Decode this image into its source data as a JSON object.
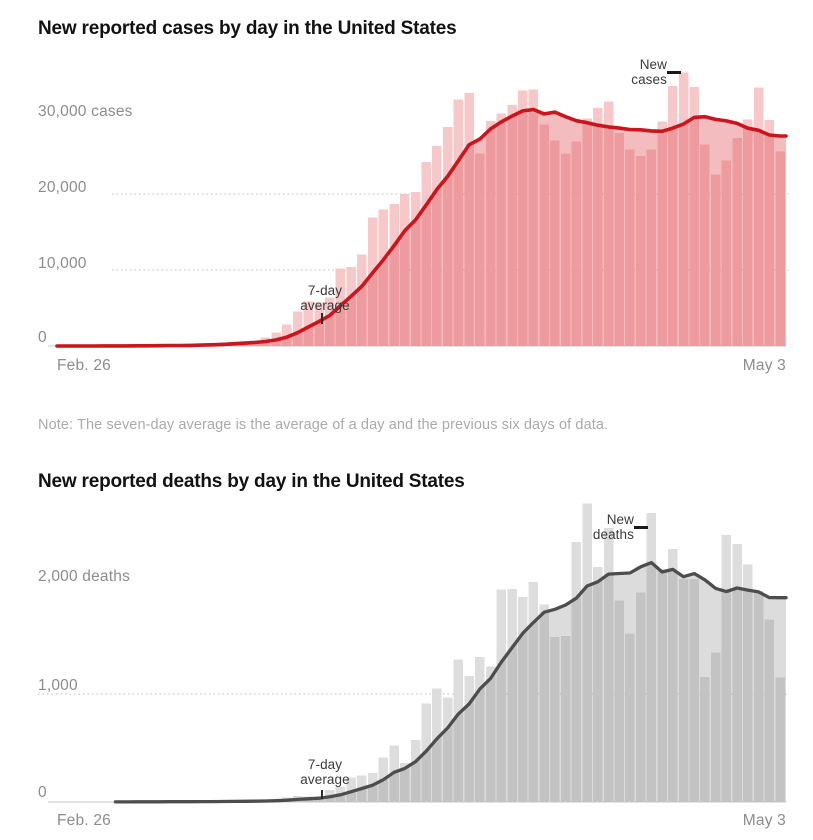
{
  "note": "Note: The seven-day average is the average of a day and the previous six days of data.",
  "charts": [
    {
      "title": "New reported cases by day in the United States",
      "series_annotation": "New cases",
      "avg_annotation": "7-day average",
      "x_start_label": "Feb. 26",
      "x_end_label": "May 3",
      "y_labels": [
        "30,000 cases",
        "20,000",
        "10,000",
        "0"
      ],
      "colors": {
        "bar": "#f6c8ca",
        "area": "rgba(226,88,92,0.4)",
        "line": "#cb141c",
        "grid": "#cccccc",
        "zero_line": "#dadada"
      }
    },
    {
      "title": "New reported deaths by day in the United States",
      "series_annotation": "New deaths",
      "avg_annotation": "7-day average",
      "x_start_label": "Feb. 26",
      "x_end_label": "May 3",
      "y_labels": [
        "2,000 deaths",
        "1,000",
        "0"
      ],
      "colors": {
        "bar": "#dddddd",
        "area": "rgba(130,130,130,0.28)",
        "line": "#4d4d4d",
        "grid": "#cccccc",
        "zero_line": "#dadada"
      }
    }
  ],
  "chart_data": [
    {
      "type": "bar",
      "title": "New reported cases by day in the United States",
      "unit": "cases",
      "x_axis": {
        "start": "Feb. 26",
        "end": "May 3",
        "n_days": 68
      },
      "y_ticks": [
        0,
        10000,
        20000,
        30000
      ],
      "ylim": [
        0,
        36500
      ],
      "grid": "dotted horizontal gridlines at 10,000 and 20,000; solid zero baseline",
      "legend_position": "in-chart annotations (New cases -> tallest bar, 7-day average -> line)",
      "overlay": {
        "type": "line",
        "name": "7-day average",
        "derivation": "average of a day and the previous six days"
      },
      "values": [
        0,
        1,
        1,
        7,
        24,
        20,
        31,
        68,
        45,
        119,
        114,
        64,
        148,
        291,
        329,
        444,
        599,
        669,
        727,
        1114,
        1747,
        2853,
        4562,
        5836,
        5698,
        6363,
        10189,
        10377,
        12016,
        16894,
        17965,
        18695,
        19979,
        20255,
        24242,
        26341,
        28819,
        32425,
        33264,
        25316,
        29595,
        30613,
        31709,
        33606,
        33752,
        29145,
        27057,
        25306,
        26930,
        29916,
        31285,
        32165,
        28001,
        25841,
        25023,
        25858,
        29568,
        34196,
        36007,
        34072,
        26509,
        22541,
        24393,
        27353,
        29771,
        34032,
        29744,
        25621
      ]
    },
    {
      "type": "bar",
      "title": "New reported deaths by day in the United States",
      "unit": "deaths",
      "x_axis": {
        "start": "Feb. 26",
        "end": "May 3",
        "n_days": 68
      },
      "y_ticks": [
        0,
        1000,
        2000
      ],
      "ylim": [
        0,
        2800
      ],
      "grid": "dotted horizontal gridline at 1,000; solid zero baseline",
      "legend_position": "in-chart annotations (New deaths -> tall bar, 7-day average -> line)",
      "overlay": {
        "type": "line",
        "name": "7-day average",
        "derivation": "average of a day and the previous six days"
      },
      "values": [
        0,
        0,
        0,
        1,
        1,
        4,
        3,
        2,
        1,
        3,
        4,
        3,
        4,
        6,
        8,
        3,
        9,
        11,
        11,
        18,
        23,
        41,
        57,
        49,
        46,
        111,
        140,
        225,
        247,
        268,
        411,
        525,
        363,
        573,
        912,
        1049,
        968,
        1321,
        1165,
        1342,
        1255,
        1969,
        1973,
        1900,
        2035,
        1830,
        1528,
        1535,
        2407,
        2763,
        2174,
        2535,
        1867,
        1561,
        1940,
        2674,
        2156,
        2341,
        2065,
        2065,
        1157,
        1384,
        2470,
        2390,
        2201,
        1953,
        1691,
        1154
      ]
    }
  ]
}
